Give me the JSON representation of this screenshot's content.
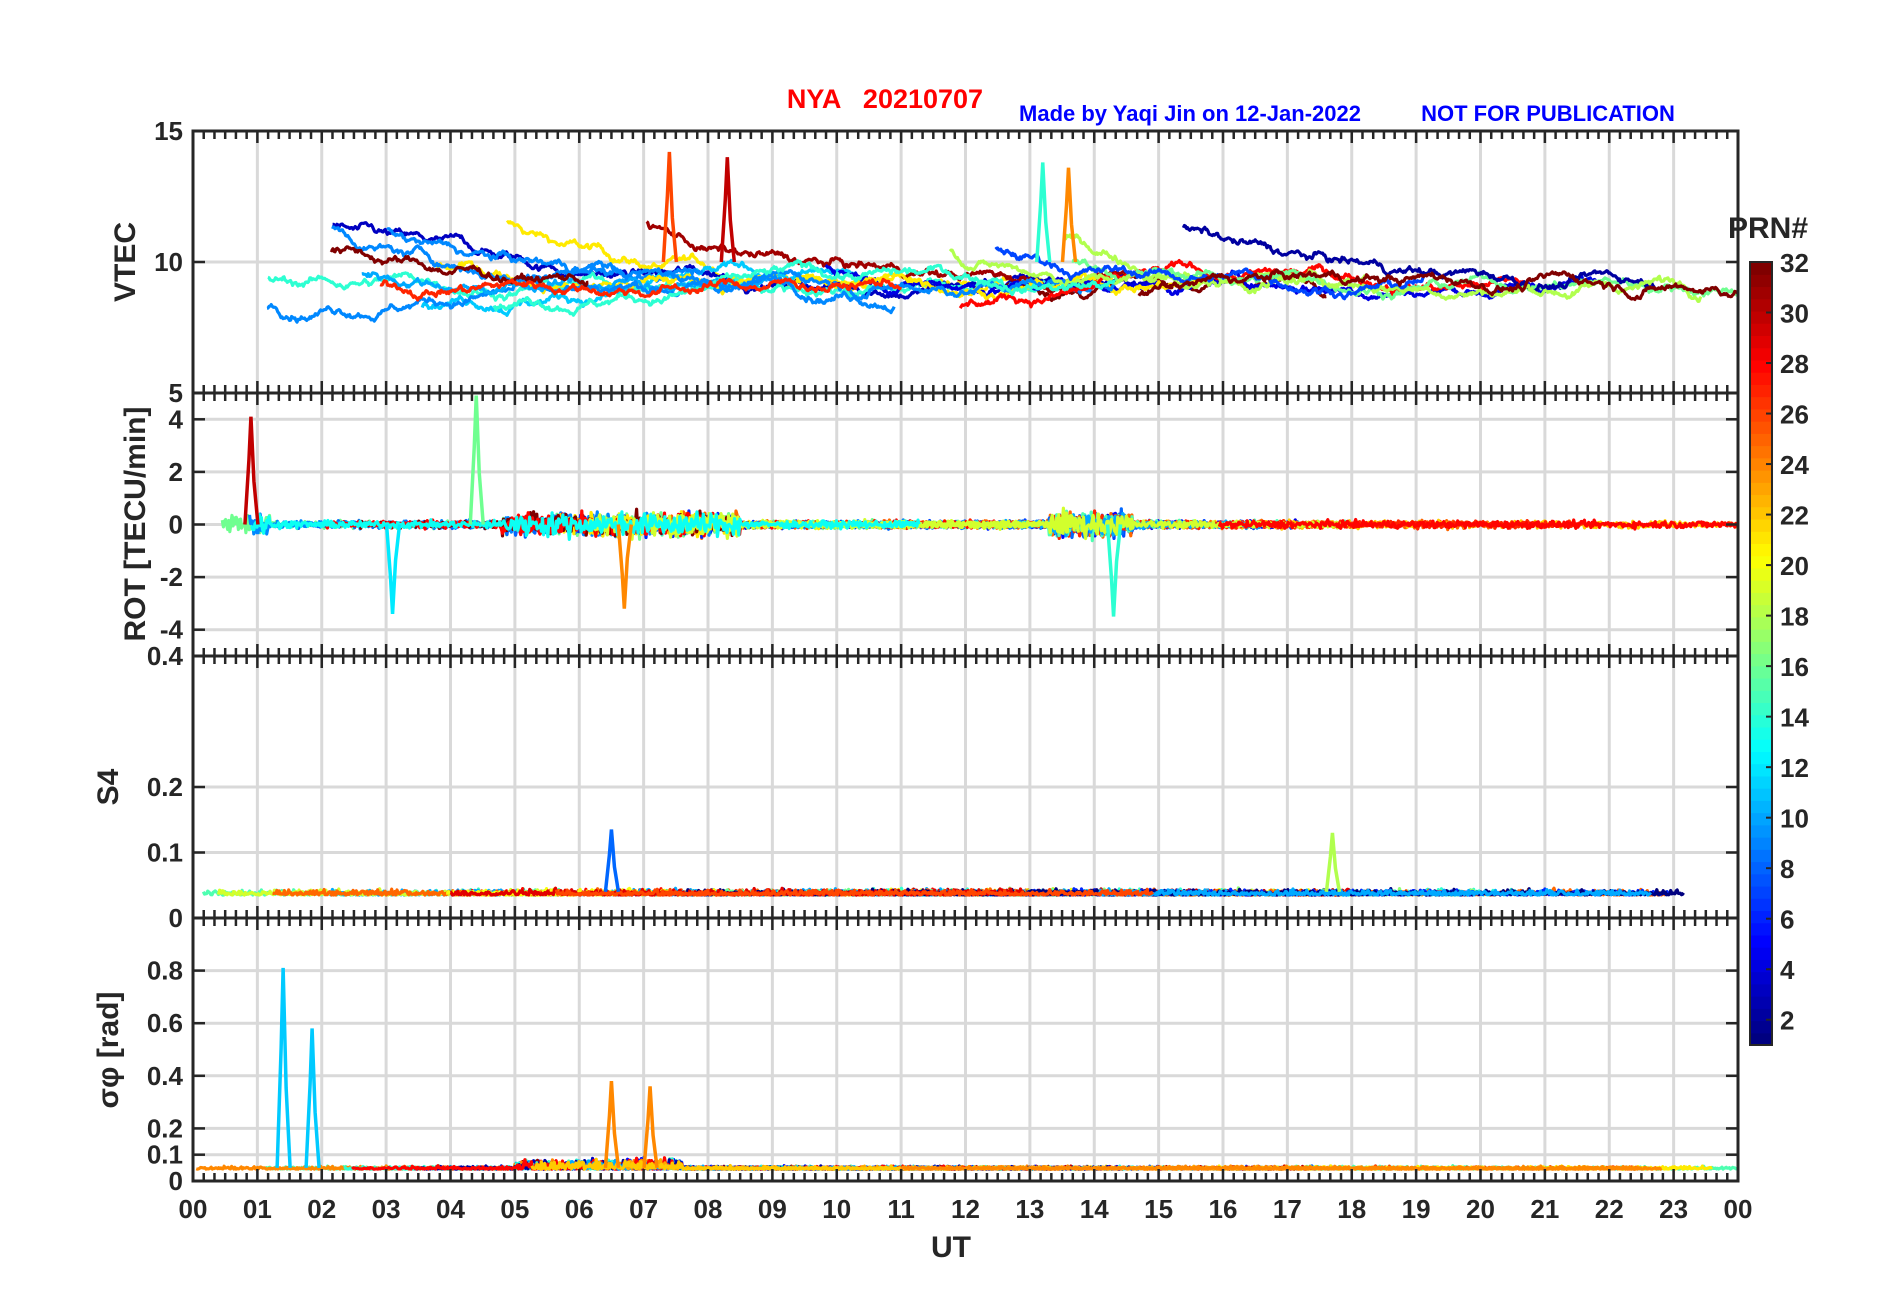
{
  "header": {
    "station_date": "NYA   20210707",
    "credit": "Made by Yaqi Jin on 12-Jan-2022",
    "notice": "NOT FOR PUBLICATION",
    "station_color": "#ff0000",
    "credit_color": "#0000ff"
  },
  "chart_data": [
    {
      "type": "line",
      "panel": "vtec",
      "ylabel": "VTEC",
      "ylim": [
        5,
        15
      ],
      "yticks": [
        "5",
        "10",
        "15"
      ],
      "grid": true,
      "x_range_hours": [
        0,
        24
      ]
    },
    {
      "type": "line",
      "panel": "rot",
      "ylabel": "ROT [TECU/min]",
      "ylim": [
        -5,
        5
      ],
      "yticks": [
        "-4",
        "-2",
        "0",
        "2",
        "4"
      ],
      "grid": true,
      "x_range_hours": [
        0,
        24
      ]
    },
    {
      "type": "line",
      "panel": "s4",
      "ylabel": "S4",
      "ylim": [
        0,
        0.4
      ],
      "yticks": [
        "0",
        "0.1",
        "0.2",
        "0.4"
      ],
      "grid": true,
      "x_range_hours": [
        0,
        24
      ]
    },
    {
      "type": "line",
      "panel": "sigma_phi",
      "ylabel": "σφ [rad]",
      "ylim": [
        0,
        1
      ],
      "yticks": [
        "0",
        "0.1",
        "0.2",
        "0.4",
        "0.6",
        "0.8"
      ],
      "grid": true,
      "x_range_hours": [
        0,
        24
      ]
    }
  ],
  "x_axis": {
    "label": "UT",
    "ticks": [
      "00",
      "01",
      "02",
      "03",
      "04",
      "05",
      "06",
      "07",
      "08",
      "09",
      "10",
      "11",
      "12",
      "13",
      "14",
      "15",
      "16",
      "17",
      "18",
      "19",
      "20",
      "21",
      "22",
      "23",
      "00"
    ]
  },
  "colorbar": {
    "label": "PRN#",
    "range": [
      1,
      32
    ],
    "ticks": [
      "2",
      "4",
      "6",
      "8",
      "10",
      "12",
      "14",
      "16",
      "18",
      "20",
      "22",
      "24",
      "26",
      "28",
      "30",
      "32"
    ],
    "colormap": "jet"
  },
  "highlights": {
    "vtec_peaks": [
      {
        "prn": 26,
        "hour": 7.4,
        "value": 14.2
      },
      {
        "prn": 30,
        "hour": 8.3,
        "value": 14.0
      },
      {
        "prn": 14,
        "hour": 13.2,
        "value": 13.8
      },
      {
        "prn": 24,
        "hour": 13.6,
        "value": 13.6
      }
    ],
    "rot_spikes": [
      {
        "prn": 30,
        "hour": 0.9,
        "value": 4.1
      },
      {
        "prn": 16,
        "hour": 4.4,
        "value": 4.9
      },
      {
        "prn": 24,
        "hour": 6.7,
        "value": -3.2
      },
      {
        "prn": 12,
        "hour": 3.1,
        "value": -3.4
      },
      {
        "prn": 14,
        "hour": 14.3,
        "value": -3.5
      }
    ],
    "s4_peaks": [
      {
        "prn": 8,
        "hour": 6.5,
        "value": 0.135
      },
      {
        "prn": 18,
        "hour": 17.7,
        "value": 0.13
      }
    ],
    "sigma_spikes": [
      {
        "prn": 11,
        "hour": 1.4,
        "value": 0.81
      },
      {
        "prn": 11,
        "hour": 1.85,
        "value": 0.58
      },
      {
        "prn": 24,
        "hour": 6.5,
        "value": 0.38
      },
      {
        "prn": 24,
        "hour": 7.1,
        "value": 0.36
      }
    ]
  }
}
